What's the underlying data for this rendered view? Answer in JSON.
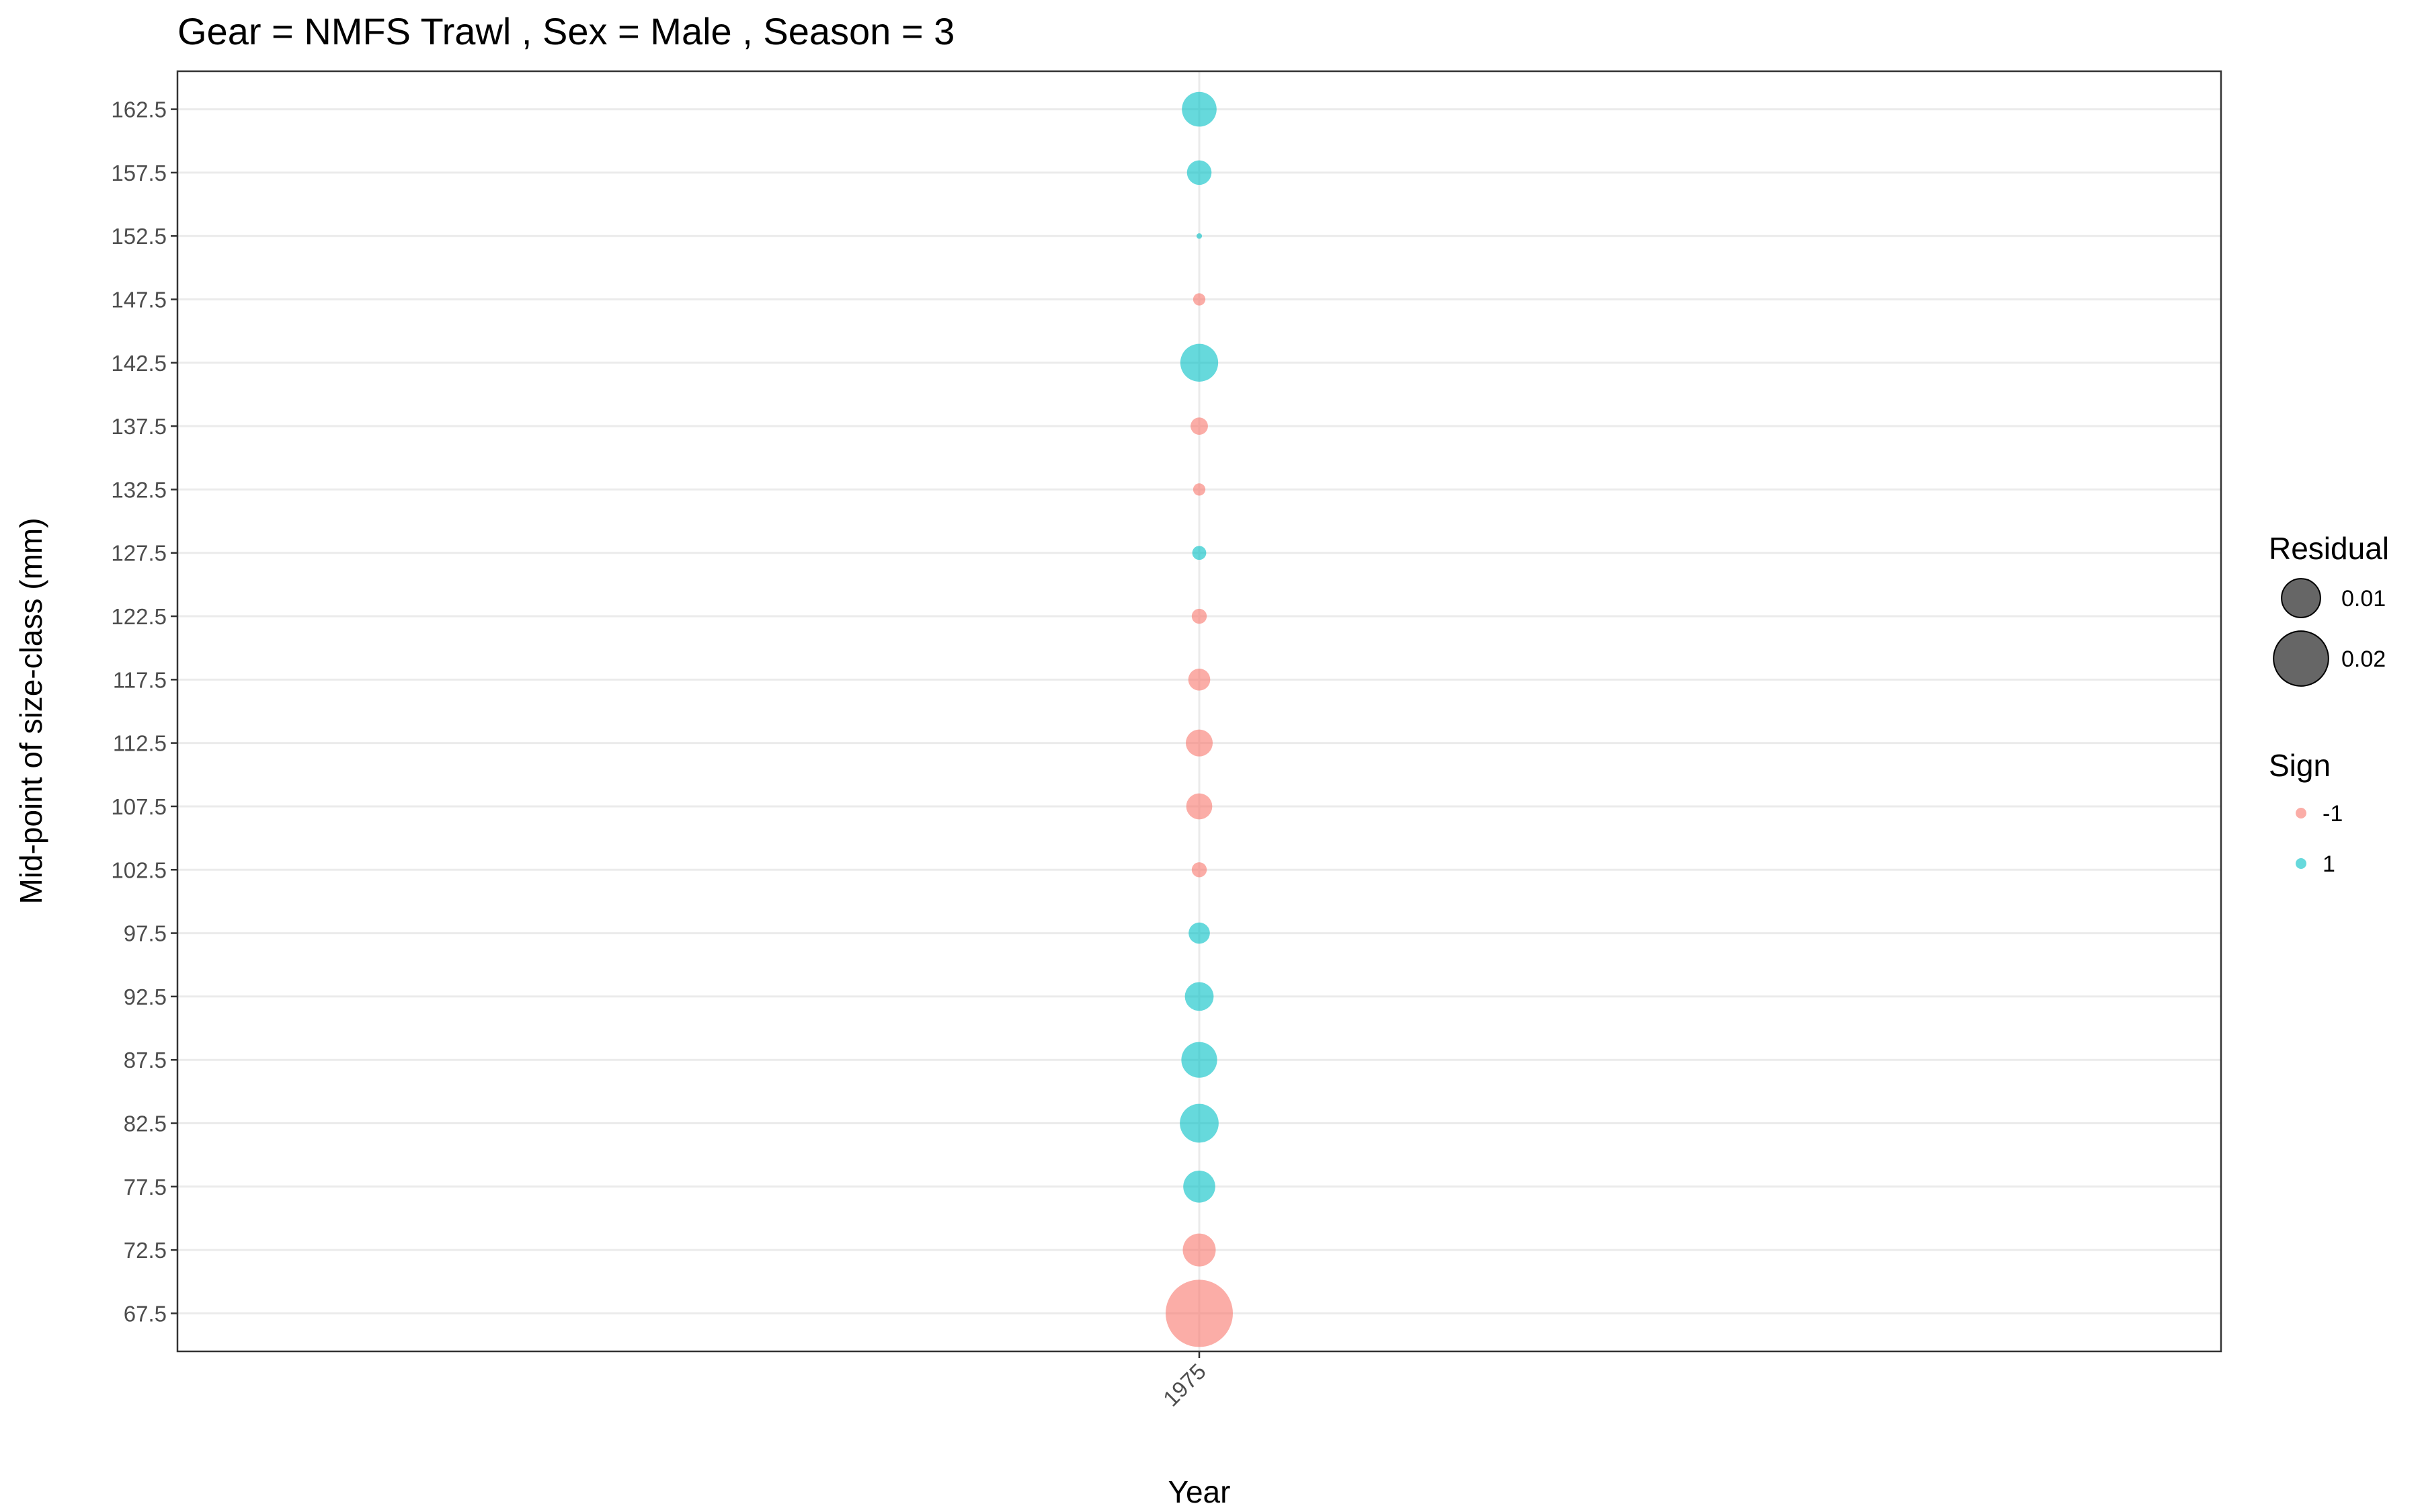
{
  "chart_data": {
    "type": "scatter",
    "title": "Gear = NMFS Trawl , Sex = Male , Season = 3",
    "xlabel": "Year",
    "ylabel": "Mid-point of size-class (mm)",
    "x_categories": [
      "1975"
    ],
    "y_ticks": [
      67.5,
      72.5,
      77.5,
      82.5,
      87.5,
      92.5,
      97.5,
      102.5,
      107.5,
      112.5,
      117.5,
      122.5,
      127.5,
      132.5,
      137.5,
      142.5,
      147.5,
      152.5,
      157.5,
      162.5
    ],
    "ylim": [
      64.5,
      165.5
    ],
    "grid": true,
    "size_legend": {
      "title": "Residual",
      "entries": [
        {
          "label": "0.01",
          "value": 0.01
        },
        {
          "label": "0.02",
          "value": 0.02
        }
      ]
    },
    "color_legend": {
      "title": "Sign",
      "entries": [
        {
          "label": "-1",
          "color": "#F8766D"
        },
        {
          "label": "1",
          "color": "#00BFC4"
        }
      ]
    },
    "points": [
      {
        "x": "1975",
        "y": 67.5,
        "residual": 0.03,
        "sign": -1
      },
      {
        "x": "1975",
        "y": 72.5,
        "residual": 0.0072,
        "sign": -1
      },
      {
        "x": "1975",
        "y": 77.5,
        "residual": 0.0068,
        "sign": 1
      },
      {
        "x": "1975",
        "y": 82.5,
        "residual": 0.01,
        "sign": 1
      },
      {
        "x": "1975",
        "y": 87.5,
        "residual": 0.0085,
        "sign": 1
      },
      {
        "x": "1975",
        "y": 92.5,
        "residual": 0.0055,
        "sign": 1
      },
      {
        "x": "1975",
        "y": 97.5,
        "residual": 0.003,
        "sign": 1
      },
      {
        "x": "1975",
        "y": 102.5,
        "residual": 0.0015,
        "sign": -1
      },
      {
        "x": "1975",
        "y": 107.5,
        "residual": 0.0045,
        "sign": -1
      },
      {
        "x": "1975",
        "y": 112.5,
        "residual": 0.0048,
        "sign": -1
      },
      {
        "x": "1975",
        "y": 117.5,
        "residual": 0.0032,
        "sign": -1
      },
      {
        "x": "1975",
        "y": 122.5,
        "residual": 0.0015,
        "sign": -1
      },
      {
        "x": "1975",
        "y": 127.5,
        "residual": 0.0013,
        "sign": 1
      },
      {
        "x": "1975",
        "y": 132.5,
        "residual": 0.001,
        "sign": -1
      },
      {
        "x": "1975",
        "y": 137.5,
        "residual": 0.002,
        "sign": -1
      },
      {
        "x": "1975",
        "y": 142.5,
        "residual": 0.0095,
        "sign": 1
      },
      {
        "x": "1975",
        "y": 147.5,
        "residual": 0.001,
        "sign": -1
      },
      {
        "x": "1975",
        "y": 152.5,
        "residual": 0.0002,
        "sign": 1
      },
      {
        "x": "1975",
        "y": 157.5,
        "residual": 0.004,
        "sign": 1
      },
      {
        "x": "1975",
        "y": 162.5,
        "residual": 0.008,
        "sign": 1
      }
    ]
  }
}
